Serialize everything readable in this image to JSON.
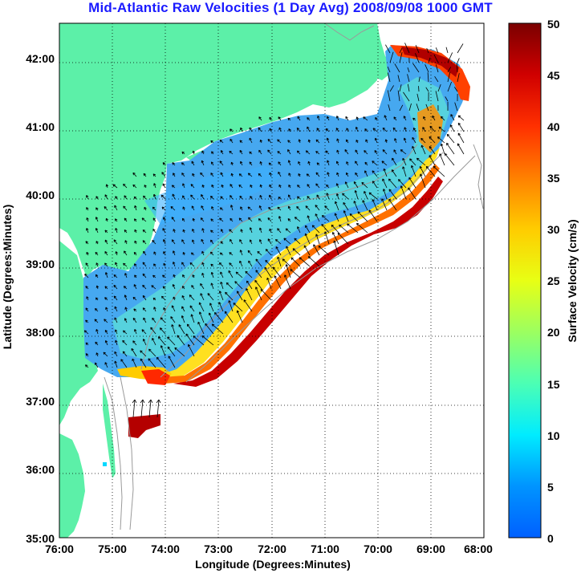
{
  "title": "Mid-Atlantic Raw Velocities (1 Day Avg) 2008/09/08 1000 GMT",
  "x_axis": {
    "label": "Longitude (Degrees:Minutes)",
    "ticks": [
      "76:00",
      "75:00",
      "74:00",
      "73:00",
      "72:00",
      "71:00",
      "70:00",
      "69:00",
      "68:00"
    ]
  },
  "y_axis": {
    "label": "Latitude (Degrees:Minutes)",
    "ticks": [
      "35:00",
      "36:00",
      "37:00",
      "38:00",
      "39:00",
      "40:00",
      "41:00",
      "42:00"
    ]
  },
  "colorbar": {
    "label": "Surface Velocity (cm/s)",
    "ticks": [
      "0",
      "5",
      "10",
      "15",
      "20",
      "25",
      "30",
      "35",
      "40",
      "45",
      "50"
    ],
    "range": [
      0,
      50
    ]
  },
  "colors": {
    "land": "#5cf0a8",
    "title": "#1a1aff",
    "bathymetry": "#a0a0a0"
  },
  "chart_data": {
    "type": "heatmap",
    "title": "Mid-Atlantic Raw Velocities (1 Day Avg) 2008/09/08 1000 GMT",
    "xlabel": "Longitude (Degrees:Minutes)",
    "ylabel": "Latitude (Degrees:Minutes)",
    "colorbar_label": "Surface Velocity (cm/s)",
    "xlim": [
      -76,
      -68
    ],
    "ylim": [
      35,
      42.5
    ],
    "clim": [
      0,
      50
    ],
    "grid": true,
    "colormap": "jet",
    "units": "cm/s"
  }
}
